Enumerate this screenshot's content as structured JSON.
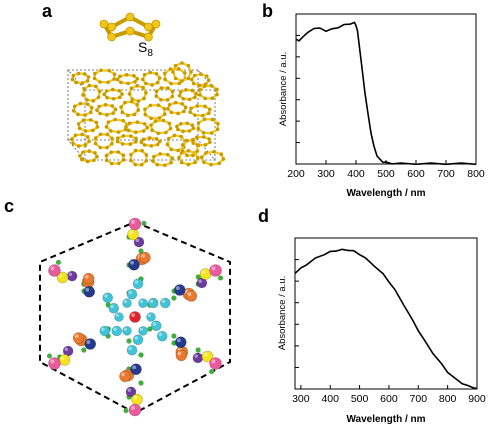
{
  "figure": {
    "panel_a": {
      "label": "a",
      "molecule": "S",
      "molecule_subscript": "8"
    },
    "panel_b": {
      "label": "b"
    },
    "panel_c": {
      "label": "c"
    },
    "panel_d": {
      "label": "d"
    }
  },
  "chart_data": [
    {
      "type": "line",
      "panel": "b",
      "xlabel": "Wavelength / nm",
      "ylabel": "Absorbance / a.u.",
      "xlim": [
        200,
        800
      ],
      "xticks": [
        "200",
        "300",
        "400",
        "500",
        "600",
        "700",
        "800"
      ],
      "ylim": [
        0,
        1
      ],
      "grid": false,
      "series": [
        {
          "x": [
            200,
            210,
            220,
            240,
            260,
            280,
            300,
            320,
            340,
            360,
            380,
            395,
            400,
            405,
            410,
            420,
            430,
            440,
            450,
            460,
            470,
            480,
            490,
            500,
            520,
            550,
            600,
            650,
            700,
            750,
            800
          ],
          "y": [
            0.88,
            0.86,
            0.89,
            0.92,
            0.955,
            0.95,
            0.935,
            0.945,
            0.96,
            0.975,
            0.985,
            0.99,
            0.975,
            0.93,
            0.85,
            0.67,
            0.5,
            0.35,
            0.22,
            0.12,
            0.06,
            0.03,
            0.015,
            0.01,
            0.005,
            0.003,
            0.002,
            0.002,
            0.002,
            0.002,
            0.002
          ]
        }
      ]
    },
    {
      "type": "line",
      "panel": "d",
      "xlabel": "Wavelength / nm",
      "ylabel": "Absorbance / a.u.",
      "xlim": [
        280,
        900
      ],
      "xticks": [
        "300",
        "400",
        "500",
        "600",
        "700",
        "800",
        "900"
      ],
      "ylim": [
        0,
        1
      ],
      "grid": false,
      "series": [
        {
          "x": [
            280,
            300,
            320,
            350,
            380,
            400,
            420,
            440,
            460,
            480,
            500,
            520,
            550,
            580,
            600,
            620,
            650,
            680,
            700,
            720,
            750,
            780,
            800,
            820,
            850,
            870,
            890,
            900
          ],
          "y": [
            0.81,
            0.84,
            0.87,
            0.91,
            0.94,
            0.955,
            0.965,
            0.97,
            0.97,
            0.96,
            0.94,
            0.91,
            0.86,
            0.8,
            0.75,
            0.69,
            0.59,
            0.48,
            0.41,
            0.34,
            0.25,
            0.17,
            0.12,
            0.08,
            0.04,
            0.02,
            0.01,
            0.0
          ]
        }
      ]
    }
  ],
  "colors": {
    "sulfur": "#f2c619",
    "sulfur_dark": "#c79a00",
    "red": "#e0252a",
    "cyan": "#3fc3d6",
    "orange": "#e8792e",
    "navy": "#243a8c",
    "purple": "#6b3b9e",
    "yellow": "#f5e31c",
    "pink": "#e85a9c",
    "green": "#3fae3f"
  }
}
